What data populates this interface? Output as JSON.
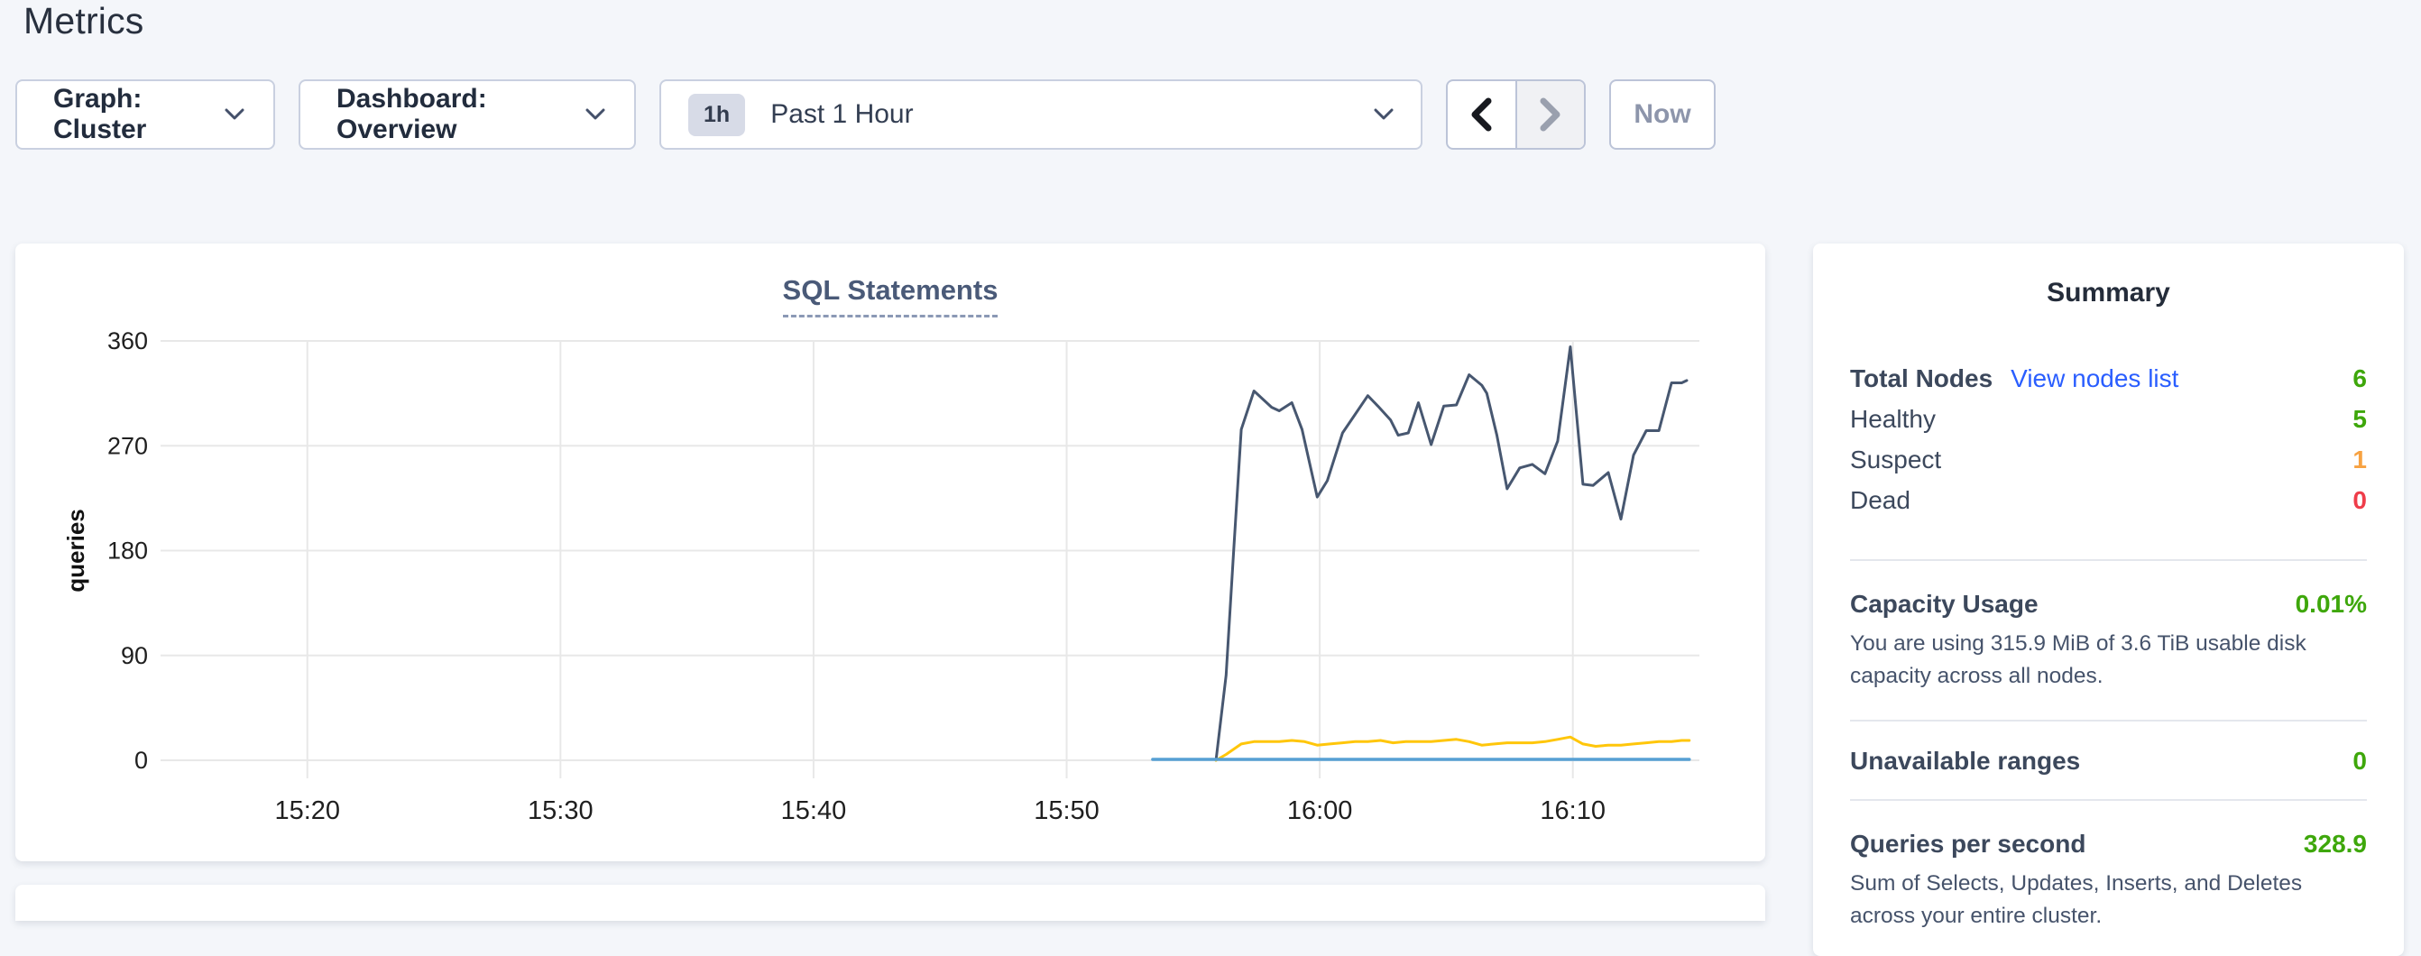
{
  "page": {
    "title": "Metrics"
  },
  "toolbar": {
    "graph_dropdown": "Graph: Cluster",
    "dashboard_dropdown": "Dashboard: Overview",
    "time_badge": "1h",
    "time_label": "Past 1 Hour",
    "now_button": "Now"
  },
  "chart_data": {
    "type": "line",
    "title": "SQL Statements",
    "ylabel": "queries",
    "ylim": [
      0,
      360
    ],
    "yticks": [
      0,
      90,
      180,
      270,
      360
    ],
    "x_domain_minutes_after_1500": [
      14.2,
      75
    ],
    "xticks": [
      {
        "t": 20,
        "label": "15:20"
      },
      {
        "t": 30,
        "label": "15:30"
      },
      {
        "t": 40,
        "label": "15:40"
      },
      {
        "t": 50,
        "label": "15:50"
      },
      {
        "t": 60,
        "label": "16:00"
      },
      {
        "t": 70,
        "label": "16:10"
      }
    ],
    "grid": true,
    "legend": "none",
    "series": [
      {
        "name": "navy",
        "color": "#475770",
        "width": 3,
        "points": [
          [
            55.9,
            0
          ],
          [
            56.3,
            73
          ],
          [
            56.6,
            180
          ],
          [
            56.9,
            284
          ],
          [
            57.4,
            317
          ],
          [
            58.1,
            303
          ],
          [
            58.4,
            300
          ],
          [
            58.9,
            307
          ],
          [
            59.3,
            284
          ],
          [
            59.9,
            226
          ],
          [
            60.3,
            240
          ],
          [
            60.9,
            281
          ],
          [
            61.4,
            297
          ],
          [
            61.9,
            313
          ],
          [
            62.3,
            304
          ],
          [
            62.8,
            292
          ],
          [
            63.1,
            279
          ],
          [
            63.5,
            281
          ],
          [
            63.9,
            307
          ],
          [
            64.4,
            271
          ],
          [
            64.9,
            304
          ],
          [
            65.4,
            305
          ],
          [
            65.9,
            331
          ],
          [
            66.4,
            322
          ],
          [
            66.6,
            315
          ],
          [
            67.0,
            279
          ],
          [
            67.4,
            233
          ],
          [
            67.9,
            251
          ],
          [
            68.4,
            254
          ],
          [
            68.9,
            246
          ],
          [
            69.4,
            274
          ],
          [
            69.9,
            355
          ],
          [
            70.4,
            237
          ],
          [
            70.8,
            236
          ],
          [
            71.4,
            247
          ],
          [
            71.9,
            207
          ],
          [
            72.4,
            262
          ],
          [
            72.9,
            283
          ],
          [
            73.4,
            283
          ],
          [
            73.9,
            324
          ],
          [
            74.3,
            324
          ],
          [
            74.5,
            326
          ]
        ]
      },
      {
        "name": "yellow",
        "color": "#FFC60A",
        "width": 3,
        "points": [
          [
            55.9,
            0
          ],
          [
            56.3,
            5
          ],
          [
            56.9,
            14
          ],
          [
            57.4,
            16
          ],
          [
            57.9,
            16
          ],
          [
            58.4,
            16
          ],
          [
            58.9,
            17
          ],
          [
            59.4,
            16
          ],
          [
            59.9,
            13
          ],
          [
            60.4,
            14
          ],
          [
            60.9,
            15
          ],
          [
            61.4,
            16
          ],
          [
            61.9,
            16
          ],
          [
            62.4,
            17
          ],
          [
            62.9,
            15
          ],
          [
            63.4,
            16
          ],
          [
            63.9,
            16
          ],
          [
            64.4,
            16
          ],
          [
            64.9,
            17
          ],
          [
            65.4,
            18
          ],
          [
            65.9,
            16
          ],
          [
            66.4,
            13
          ],
          [
            66.9,
            14
          ],
          [
            67.4,
            15
          ],
          [
            67.9,
            15
          ],
          [
            68.4,
            15
          ],
          [
            68.9,
            16
          ],
          [
            69.4,
            18
          ],
          [
            69.9,
            20
          ],
          [
            70.4,
            14
          ],
          [
            70.9,
            12
          ],
          [
            71.4,
            13
          ],
          [
            71.9,
            13
          ],
          [
            72.4,
            14
          ],
          [
            72.9,
            15
          ],
          [
            73.4,
            16
          ],
          [
            73.9,
            16
          ],
          [
            74.3,
            17
          ],
          [
            74.6,
            17
          ]
        ]
      },
      {
        "name": "blue",
        "color": "#57A0D4",
        "width": 3.5,
        "points": [
          [
            53.4,
            0.8
          ],
          [
            74.6,
            0.8
          ]
        ]
      }
    ]
  },
  "summary": {
    "title": "Summary",
    "total": {
      "label": "Total Nodes",
      "link": "View nodes list",
      "value": "6"
    },
    "healthy": {
      "label": "Healthy",
      "value": "5"
    },
    "suspect": {
      "label": "Suspect",
      "value": "1"
    },
    "dead": {
      "label": "Dead",
      "value": "0"
    },
    "capacity": {
      "label": "Capacity Usage",
      "value": "0.01%",
      "description": "You are using 315.9 MiB of 3.6 TiB usable disk capacity across all nodes."
    },
    "unavailable_ranges": {
      "label": "Unavailable ranges",
      "value": "0"
    },
    "qps": {
      "label": "Queries per second",
      "value": "328.9",
      "description": "Sum of Selects, Updates, Inserts, and Deletes across your entire cluster."
    },
    "colors": {
      "green": "#3EA70B",
      "orange": "#F7A242",
      "red": "#EF3D4A",
      "link_blue": "#2A5EFF"
    }
  }
}
